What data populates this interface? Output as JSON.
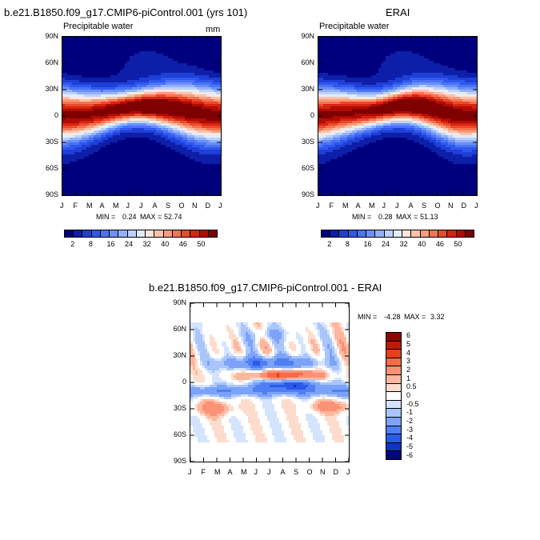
{
  "chart_data": [
    {
      "type": "heatmap",
      "title": "b.e21.B1850.f09_g17.CMIP6-piControl.001 (yrs 101)",
      "subtitle_left": "Precipitable water",
      "units": "mm",
      "x_ticks": [
        "J",
        "F",
        "M",
        "A",
        "M",
        "J",
        "J",
        "A",
        "S",
        "O",
        "N",
        "D",
        "J"
      ],
      "y_ticks": [
        "90N",
        "60N",
        "30N",
        "0",
        "30S",
        "60S",
        "90S"
      ],
      "min_label": "MIN =",
      "min": "0.24",
      "max_label": "MAX =",
      "max": "52.74",
      "colorbar_labels": [
        "2",
        "8",
        "16",
        "24",
        "32",
        "40",
        "46",
        "50"
      ]
    },
    {
      "type": "heatmap",
      "title": "ERAI",
      "subtitle_left": "Precipitable water",
      "x_ticks": [
        "J",
        "F",
        "M",
        "A",
        "M",
        "J",
        "J",
        "A",
        "S",
        "O",
        "N",
        "D",
        "J"
      ],
      "y_ticks": [
        "90N",
        "60N",
        "30N",
        "0",
        "30S",
        "60S",
        "90S"
      ],
      "min_label": "MIN =",
      "min": "0.28",
      "max_label": "MAX =",
      "max": "51.13",
      "colorbar_labels": [
        "2",
        "8",
        "16",
        "24",
        "32",
        "40",
        "46",
        "50"
      ]
    },
    {
      "type": "heatmap",
      "title": "b.e21.B1850.f09_g17.CMIP6-piControl.001 - ERAI",
      "x_ticks": [
        "J",
        "F",
        "M",
        "A",
        "M",
        "J",
        "J",
        "A",
        "S",
        "O",
        "N",
        "D",
        "J"
      ],
      "y_ticks": [
        "90N",
        "60N",
        "30N",
        "0",
        "30S",
        "60S",
        "90S"
      ],
      "min_label": "MIN =",
      "min": "-4.28",
      "max_label": "MAX =",
      "max": "3.32",
      "colorbar_labels": [
        "6",
        "5",
        "4",
        "3",
        "2",
        "1",
        "0.5",
        "0",
        "-0.5",
        "-1",
        "-2",
        "-3",
        "-4",
        "-5",
        "-6"
      ]
    }
  ],
  "colors": {
    "field_scale": [
      "#00007f",
      "#0d1fa8",
      "#1f3fd6",
      "#2f58ef",
      "#4a73f5",
      "#6b90f8",
      "#93b1fb",
      "#bcd1fd",
      "#e2ecfe",
      "#fde6dc",
      "#fbc2aa",
      "#f89c7c",
      "#f37452",
      "#eb4a2b",
      "#d4250f",
      "#b00b04",
      "#7f0000"
    ],
    "diff_scale": [
      "#8c0800",
      "#c01a07",
      "#e5401e",
      "#f56b47",
      "#fa9275",
      "#fcb89f",
      "#fddccd",
      "#ffffff",
      "#d5e4fd",
      "#a9c5fb",
      "#7ca3f8",
      "#4f7ff3",
      "#2a5aea",
      "#1234c0",
      "#00087a"
    ]
  }
}
